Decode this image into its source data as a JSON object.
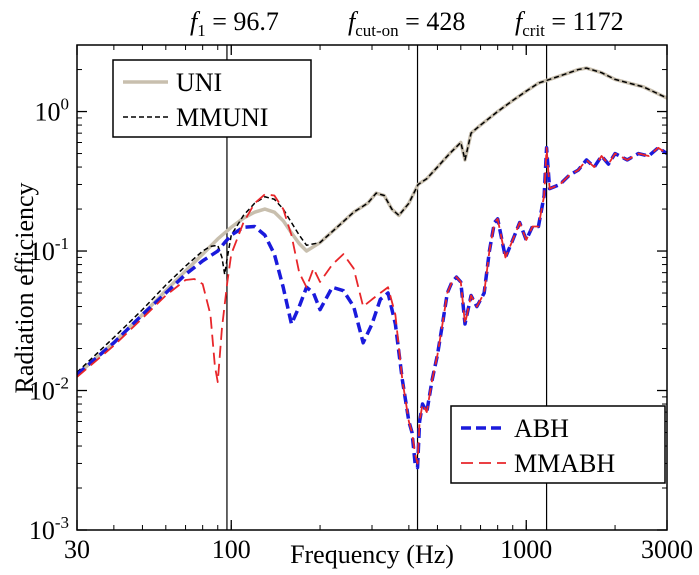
{
  "chart_data": {
    "type": "line",
    "xlabel": "Frequency (Hz)",
    "ylabel": "Radiation efficiency",
    "xscale": "log",
    "yscale": "log",
    "xlim": [
      30,
      3000
    ],
    "ylim": [
      0.001,
      3
    ],
    "x_ticks": [
      {
        "value": 30,
        "label": "30"
      },
      {
        "value": 100,
        "label": "100"
      },
      {
        "value": 1000,
        "label": "1000"
      },
      {
        "value": 3000,
        "label": "3000"
      }
    ],
    "y_ticks": [
      {
        "value": 0.001,
        "base": "10",
        "exp": "-3"
      },
      {
        "value": 0.01,
        "base": "10",
        "exp": "-2"
      },
      {
        "value": 0.1,
        "base": "10",
        "exp": "-1"
      },
      {
        "value": 1,
        "base": "10",
        "exp": "0"
      }
    ],
    "vlines": [
      {
        "x": 96.7,
        "sym": "f",
        "sub": "1",
        "text": " = 96.7"
      },
      {
        "x": 428,
        "sym": "f",
        "sub": "cut-on",
        "text": " = 428"
      },
      {
        "x": 1172,
        "sym": "f",
        "sub": "crit",
        "text": " = 1172"
      }
    ],
    "legend_top_left": [
      "UNI",
      "MMUNI"
    ],
    "legend_bottom_right": [
      "ABH",
      "MMABH"
    ],
    "series": [
      {
        "name": "UNI",
        "color": "#c8bfae",
        "style": "solid",
        "x": [
          30,
          40,
          50,
          60,
          70,
          80,
          90,
          100,
          110,
          120,
          130,
          140,
          150,
          160,
          170,
          180,
          200,
          230,
          260,
          290,
          310,
          330,
          350,
          370,
          400,
          430,
          460,
          500,
          550,
          600,
          620,
          650,
          700,
          800,
          900,
          1000,
          1100,
          1200,
          1300,
          1400,
          1500,
          1600,
          1800,
          2000,
          2500,
          3000
        ],
        "values": [
          0.013,
          0.022,
          0.035,
          0.052,
          0.072,
          0.095,
          0.122,
          0.148,
          0.172,
          0.19,
          0.2,
          0.19,
          0.165,
          0.135,
          0.113,
          0.1,
          0.115,
          0.15,
          0.19,
          0.22,
          0.26,
          0.25,
          0.2,
          0.18,
          0.22,
          0.3,
          0.33,
          0.4,
          0.5,
          0.6,
          0.45,
          0.7,
          0.8,
          1.0,
          1.2,
          1.4,
          1.6,
          1.7,
          1.8,
          1.9,
          2.0,
          2.05,
          1.9,
          1.7,
          1.5,
          1.25
        ]
      },
      {
        "name": "MMUNI",
        "color": "#000000",
        "style": "dashed-thin",
        "x": [
          30,
          40,
          50,
          60,
          70,
          80,
          85,
          90,
          93,
          95,
          97,
          100,
          110,
          120,
          130,
          140,
          150,
          160,
          170,
          180,
          200,
          230,
          260,
          290,
          310,
          330,
          350,
          370,
          400,
          430,
          460,
          500,
          550,
          600,
          620,
          650,
          700,
          800,
          900,
          1000,
          1100,
          1200,
          1300,
          1400,
          1500,
          1600,
          1800,
          2000,
          2500,
          3000
        ],
        "values": [
          0.0135,
          0.024,
          0.038,
          0.057,
          0.078,
          0.1,
          0.108,
          0.11,
          0.09,
          0.068,
          0.09,
          0.13,
          0.18,
          0.22,
          0.245,
          0.235,
          0.2,
          0.16,
          0.13,
          0.11,
          0.115,
          0.15,
          0.19,
          0.22,
          0.26,
          0.25,
          0.2,
          0.18,
          0.22,
          0.3,
          0.33,
          0.4,
          0.5,
          0.6,
          0.45,
          0.7,
          0.8,
          1.0,
          1.2,
          1.4,
          1.6,
          1.7,
          1.8,
          1.9,
          2.0,
          2.05,
          1.9,
          1.7,
          1.5,
          1.25
        ]
      },
      {
        "name": "ABH",
        "color": "#1a1adc",
        "style": "dashed-thick",
        "x": [
          30,
          40,
          50,
          60,
          70,
          80,
          90,
          95,
          100,
          110,
          120,
          130,
          140,
          150,
          160,
          170,
          180,
          190,
          200,
          220,
          240,
          260,
          280,
          300,
          320,
          340,
          360,
          380,
          400,
          410,
          420,
          428,
          435,
          445,
          460,
          480,
          500,
          520,
          540,
          560,
          580,
          600,
          620,
          650,
          680,
          720,
          750,
          780,
          800,
          850,
          900,
          950,
          1000,
          1050,
          1100,
          1150,
          1172,
          1200,
          1300,
          1400,
          1500,
          1600,
          1700,
          1800,
          1900,
          2000,
          2200,
          2400,
          2600,
          2800,
          3000
        ],
        "values": [
          0.013,
          0.022,
          0.035,
          0.05,
          0.068,
          0.085,
          0.1,
          0.115,
          0.13,
          0.148,
          0.15,
          0.13,
          0.095,
          0.055,
          0.03,
          0.04,
          0.055,
          0.05,
          0.038,
          0.055,
          0.052,
          0.04,
          0.022,
          0.03,
          0.045,
          0.05,
          0.03,
          0.012,
          0.006,
          0.005,
          0.003,
          0.0028,
          0.006,
          0.008,
          0.007,
          0.012,
          0.018,
          0.03,
          0.05,
          0.06,
          0.065,
          0.06,
          0.03,
          0.048,
          0.04,
          0.05,
          0.1,
          0.16,
          0.17,
          0.09,
          0.12,
          0.16,
          0.12,
          0.15,
          0.15,
          0.25,
          0.55,
          0.28,
          0.3,
          0.35,
          0.38,
          0.45,
          0.4,
          0.48,
          0.42,
          0.5,
          0.45,
          0.5,
          0.48,
          0.55,
          0.5
        ]
      },
      {
        "name": "MMABH",
        "color": "#e8262a",
        "style": "dashed",
        "x": [
          30,
          40,
          50,
          60,
          70,
          75,
          80,
          85,
          88,
          90,
          93,
          97,
          100,
          110,
          120,
          130,
          140,
          150,
          160,
          170,
          180,
          190,
          200,
          220,
          240,
          260,
          280,
          300,
          320,
          340,
          360,
          380,
          400,
          410,
          420,
          428,
          435,
          445,
          460,
          480,
          500,
          520,
          540,
          560,
          580,
          600,
          620,
          650,
          680,
          720,
          750,
          780,
          800,
          850,
          900,
          950,
          1000,
          1050,
          1100,
          1150,
          1172,
          1200,
          1300,
          1400,
          1500,
          1600,
          1700,
          1800,
          1900,
          2000,
          2200,
          2400,
          2600,
          2800,
          3000
        ],
        "values": [
          0.0125,
          0.021,
          0.033,
          0.048,
          0.062,
          0.063,
          0.058,
          0.035,
          0.015,
          0.0115,
          0.028,
          0.06,
          0.095,
          0.16,
          0.22,
          0.255,
          0.25,
          0.2,
          0.13,
          0.07,
          0.055,
          0.075,
          0.06,
          0.08,
          0.095,
          0.075,
          0.04,
          0.045,
          0.05,
          0.055,
          0.035,
          0.012,
          0.006,
          0.005,
          0.0035,
          0.003,
          0.006,
          0.008,
          0.007,
          0.012,
          0.018,
          0.03,
          0.05,
          0.06,
          0.065,
          0.06,
          0.03,
          0.048,
          0.04,
          0.05,
          0.1,
          0.16,
          0.17,
          0.09,
          0.12,
          0.16,
          0.12,
          0.15,
          0.15,
          0.25,
          0.55,
          0.28,
          0.3,
          0.35,
          0.38,
          0.45,
          0.4,
          0.48,
          0.42,
          0.5,
          0.45,
          0.5,
          0.48,
          0.55,
          0.5
        ]
      }
    ]
  }
}
